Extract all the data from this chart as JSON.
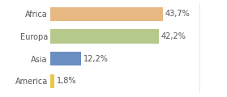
{
  "categories": [
    "America",
    "Asia",
    "Europa",
    "Africa"
  ],
  "values": [
    1.8,
    12.2,
    42.2,
    43.7
  ],
  "bar_colors": [
    "#e8c84a",
    "#6b8fc2",
    "#b5c98a",
    "#e8b882"
  ],
  "labels": [
    "1,8%",
    "12,2%",
    "42,2%",
    "43,7%"
  ],
  "xlim": [
    0,
    58
  ],
  "background_color": "#ffffff",
  "label_fontsize": 7.0,
  "tick_fontsize": 7.0,
  "bar_height": 0.62
}
